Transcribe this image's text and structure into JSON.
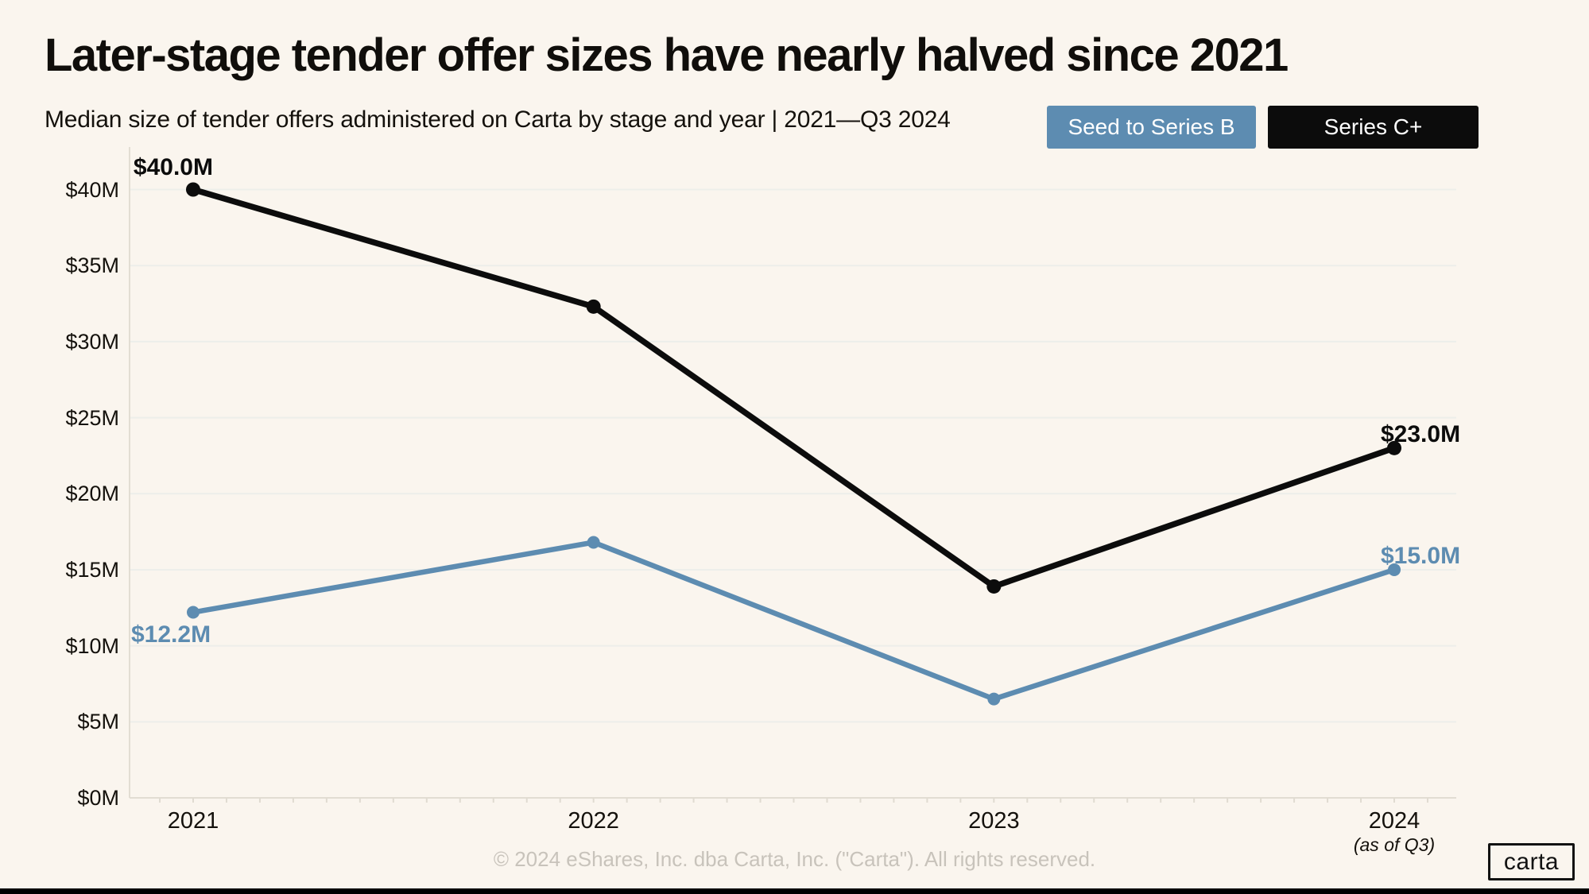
{
  "chart_data": {
    "type": "line",
    "title": "Later-stage tender offer sizes have nearly halved since 2021",
    "subtitle": "Median size of tender offers administered on Carta by stage and year | 2021—Q3 2024",
    "x": [
      "2021",
      "2022",
      "2023",
      "2024"
    ],
    "x_last_note": "(as of Q3)",
    "ylim": [
      0,
      40
    ],
    "grid": true,
    "legend_position": "top-right",
    "y_ticks": [
      {
        "value": 0,
        "label": "$0M"
      },
      {
        "value": 5,
        "label": "$5M"
      },
      {
        "value": 10,
        "label": "$10M"
      },
      {
        "value": 15,
        "label": "$15M"
      },
      {
        "value": 20,
        "label": "$20M"
      },
      {
        "value": 25,
        "label": "$25M"
      },
      {
        "value": 30,
        "label": "$30M"
      },
      {
        "value": 35,
        "label": "$35M"
      },
      {
        "value": 40,
        "label": "$40M"
      }
    ],
    "series": [
      {
        "name": "Seed to Series B",
        "color": "#5d8cb1",
        "values": [
          12.2,
          16.8,
          6.5,
          15.0
        ],
        "point_labels": [
          {
            "index": 0,
            "text": "$12.2M",
            "placement": "below-left"
          },
          {
            "index": 3,
            "text": "$15.0M",
            "placement": "above-right"
          }
        ]
      },
      {
        "name": "Series C+",
        "color": "#0c0c0c",
        "values": [
          40.0,
          32.3,
          13.9,
          23.0
        ],
        "point_labels": [
          {
            "index": 0,
            "text": "$40.0M",
            "placement": "above-left"
          },
          {
            "index": 3,
            "text": "$23.0M",
            "placement": "above-right"
          }
        ]
      }
    ]
  },
  "colors": {
    "background": "#faf5ee",
    "gridline": "#edeeea",
    "axis_line": "#e2ddd3",
    "minor_tick": "#e0dbd1",
    "footer_text": "#c8c3bb"
  },
  "footer": {
    "copyright": "© 2024 eShares, Inc. dba Carta, Inc. (\"Carta\"). All rights reserved.",
    "logo_text": "carta"
  }
}
